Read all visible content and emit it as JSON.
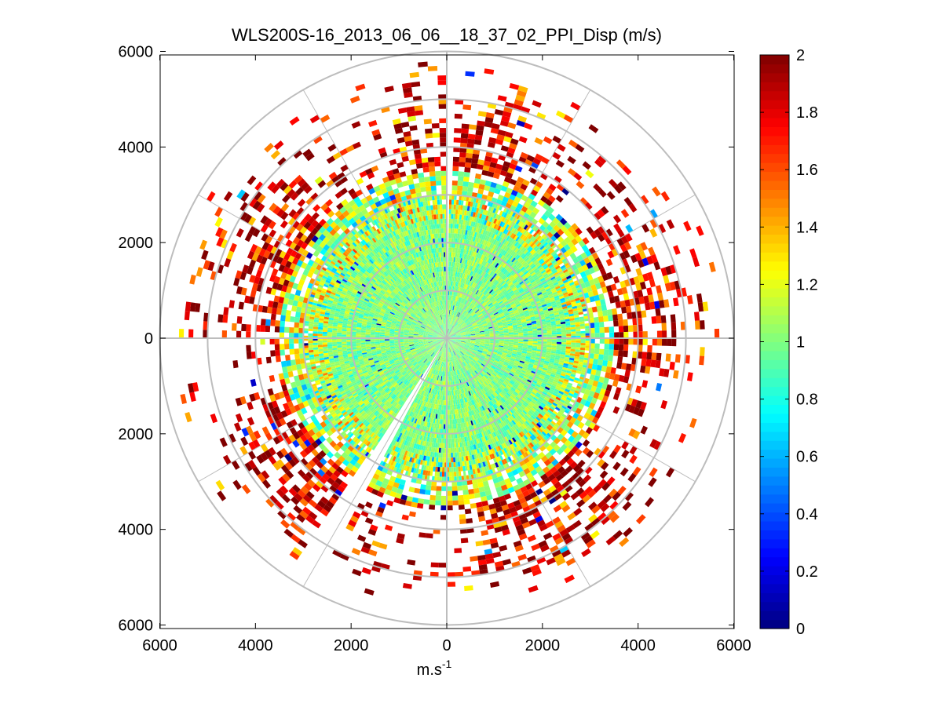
{
  "chart_data": {
    "type": "heatmap",
    "subtype": "polar-ppi-scan",
    "title": "WLS200S-16_2013_06_06__18_37_02_PPI_Disp (m/s)",
    "xlabel": "m.s",
    "xlabel_superscript": "-1",
    "ylabel": "",
    "xlim": [
      -6000,
      6000
    ],
    "ylim": [
      -6000,
      6000
    ],
    "x_tick_labels": [
      "6000",
      "4000",
      "2000",
      "0",
      "2000",
      "4000",
      "6000"
    ],
    "x_tick_values": [
      -6000,
      -4000,
      -2000,
      0,
      2000,
      4000,
      6000
    ],
    "y_tick_labels": [
      "6000",
      "4000",
      "2000",
      "0",
      "2000",
      "4000",
      "6000"
    ],
    "y_tick_values": [
      6000,
      4000,
      2000,
      0,
      -2000,
      -4000,
      -6000
    ],
    "polar_grid": {
      "ring_radii": [
        1000,
        2000,
        3000,
        4000,
        5000,
        6000
      ],
      "spoke_angles_deg": [
        0,
        30,
        60,
        90,
        120,
        150,
        180,
        210,
        240,
        270,
        300,
        330
      ]
    },
    "colorbar": {
      "min": 0,
      "max": 2,
      "tick_labels": [
        "0",
        "0.2",
        "0.4",
        "0.6",
        "0.8",
        "1",
        "1.2",
        "1.4",
        "1.6",
        "1.8",
        "2"
      ],
      "tick_values": [
        0,
        0.2,
        0.4,
        0.6,
        0.8,
        1.0,
        1.2,
        1.4,
        1.6,
        1.8,
        2.0
      ],
      "colormap": "jet"
    },
    "range_max_m": 6000,
    "beam_gap_azimuth_deg": [
      [
        0,
        0.8
      ],
      [
        208,
        212
      ]
    ],
    "value_distribution": [
      {
        "range_m": [
          0,
          2500
        ],
        "typical_value": 1.0,
        "spread": 0.15
      },
      {
        "range_m": [
          2500,
          3500
        ],
        "typical_value": 1.1,
        "spread": 0.35
      },
      {
        "range_m": [
          3500,
          6000
        ],
        "typical_value": 1.8,
        "spread": 0.4
      }
    ]
  }
}
